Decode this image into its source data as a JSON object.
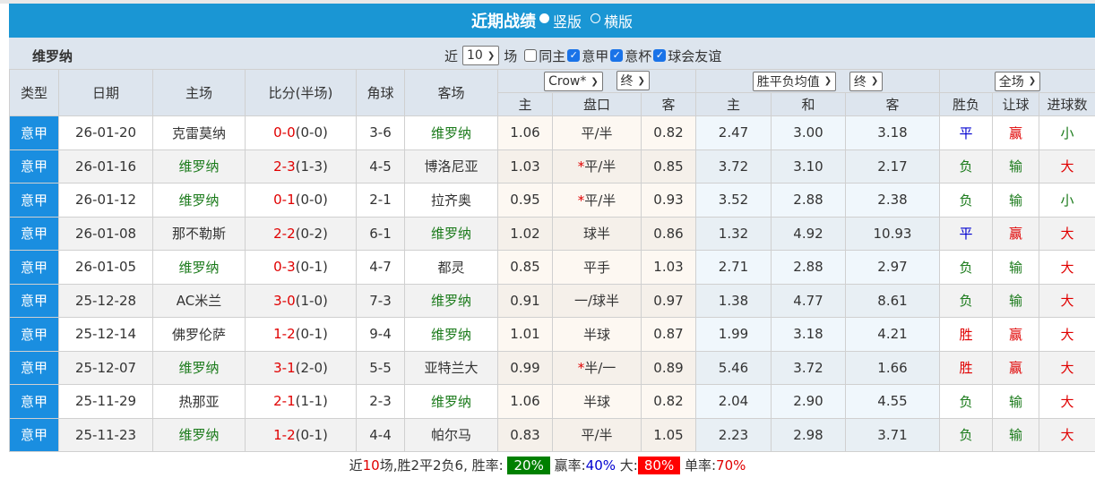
{
  "title": "近期战绩",
  "view_options": [
    {
      "label": "竖版",
      "selected": true
    },
    {
      "label": "横版",
      "selected": false
    }
  ],
  "team": "维罗纳",
  "filters": {
    "near_label": "近",
    "count": "10",
    "unit_label": "场",
    "checkboxes": [
      {
        "label": "同主",
        "checked": false
      },
      {
        "label": "意甲",
        "checked": true
      },
      {
        "label": "意杯",
        "checked": true
      },
      {
        "label": "球会友谊",
        "checked": true
      }
    ]
  },
  "headers": {
    "type": "类型",
    "date": "日期",
    "home": "主场",
    "score": "比分(半场)",
    "corner": "角球",
    "away": "客场",
    "asian_company": "Crow*",
    "asian_time": "终",
    "euro_type": "胜平负均值",
    "euro_time": "终",
    "result_scope": "全场",
    "asian_sub": [
      "主",
      "盘口",
      "客"
    ],
    "euro_sub": [
      "主",
      "和",
      "客"
    ],
    "result_sub": [
      "胜负",
      "让球",
      "进球数"
    ]
  },
  "rows": [
    {
      "type": "意甲",
      "date": "26-01-20",
      "home": "克雷莫纳",
      "score": "0-0",
      "half": "(0-0)",
      "corner": "3-6",
      "away": "维罗纳",
      "a_home": "1.06",
      "line": "平/半",
      "star": false,
      "a_away": "0.82",
      "e_home": "2.47",
      "e_draw": "3.00",
      "e_away": "3.18",
      "wdl": "平",
      "hcp": "赢",
      "ou": "小"
    },
    {
      "type": "意甲",
      "date": "26-01-16",
      "home": "维罗纳",
      "score": "2-3",
      "half": "(1-3)",
      "corner": "4-5",
      "away": "博洛尼亚",
      "a_home": "1.03",
      "line": "平/半",
      "star": true,
      "a_away": "0.85",
      "e_home": "3.72",
      "e_draw": "3.10",
      "e_away": "2.17",
      "wdl": "负",
      "hcp": "输",
      "ou": "大"
    },
    {
      "type": "意甲",
      "date": "26-01-12",
      "home": "维罗纳",
      "score": "0-1",
      "half": "(0-0)",
      "corner": "2-1",
      "away": "拉齐奥",
      "a_home": "0.95",
      "line": "平/半",
      "star": true,
      "a_away": "0.93",
      "e_home": "3.52",
      "e_draw": "2.88",
      "e_away": "2.38",
      "wdl": "负",
      "hcp": "输",
      "ou": "小"
    },
    {
      "type": "意甲",
      "date": "26-01-08",
      "home": "那不勒斯",
      "score": "2-2",
      "half": "(0-2)",
      "corner": "6-1",
      "away": "维罗纳",
      "a_home": "1.02",
      "line": "球半",
      "star": false,
      "a_away": "0.86",
      "e_home": "1.32",
      "e_draw": "4.92",
      "e_away": "10.93",
      "wdl": "平",
      "hcp": "赢",
      "ou": "大"
    },
    {
      "type": "意甲",
      "date": "26-01-05",
      "home": "维罗纳",
      "score": "0-3",
      "half": "(0-1)",
      "corner": "4-7",
      "away": "都灵",
      "a_home": "0.85",
      "line": "平手",
      "star": false,
      "a_away": "1.03",
      "e_home": "2.71",
      "e_draw": "2.88",
      "e_away": "2.97",
      "wdl": "负",
      "hcp": "输",
      "ou": "大"
    },
    {
      "type": "意甲",
      "date": "25-12-28",
      "home": "AC米兰",
      "score": "3-0",
      "half": "(1-0)",
      "corner": "7-3",
      "away": "维罗纳",
      "a_home": "0.91",
      "line": "一/球半",
      "star": false,
      "a_away": "0.97",
      "e_home": "1.38",
      "e_draw": "4.77",
      "e_away": "8.61",
      "wdl": "负",
      "hcp": "输",
      "ou": "大"
    },
    {
      "type": "意甲",
      "date": "25-12-14",
      "home": "佛罗伦萨",
      "score": "1-2",
      "half": "(0-1)",
      "corner": "9-4",
      "away": "维罗纳",
      "a_home": "1.01",
      "line": "半球",
      "star": false,
      "a_away": "0.87",
      "e_home": "1.99",
      "e_draw": "3.18",
      "e_away": "4.21",
      "wdl": "胜",
      "hcp": "赢",
      "ou": "大"
    },
    {
      "type": "意甲",
      "date": "25-12-07",
      "home": "维罗纳",
      "score": "3-1",
      "half": "(2-0)",
      "corner": "5-5",
      "away": "亚特兰大",
      "a_home": "0.99",
      "line": "半/一",
      "star": true,
      "a_away": "0.89",
      "e_home": "5.46",
      "e_draw": "3.72",
      "e_away": "1.66",
      "wdl": "胜",
      "hcp": "赢",
      "ou": "大"
    },
    {
      "type": "意甲",
      "date": "25-11-29",
      "home": "热那亚",
      "score": "2-1",
      "half": "(1-1)",
      "corner": "2-3",
      "away": "维罗纳",
      "a_home": "1.06",
      "line": "半球",
      "star": false,
      "a_away": "0.82",
      "e_home": "2.04",
      "e_draw": "2.90",
      "e_away": "4.55",
      "wdl": "负",
      "hcp": "输",
      "ou": "大"
    },
    {
      "type": "意甲",
      "date": "25-11-23",
      "home": "维罗纳",
      "score": "1-2",
      "half": "(0-1)",
      "corner": "4-4",
      "away": "帕尔马",
      "a_home": "0.83",
      "line": "平/半",
      "star": false,
      "a_away": "1.05",
      "e_home": "2.23",
      "e_draw": "2.98",
      "e_away": "3.71",
      "wdl": "负",
      "hcp": "输",
      "ou": "大"
    }
  ],
  "summary": {
    "prefix": "近",
    "count": "10",
    "text": "场,胜2平2负6, 胜率:",
    "win_rate": "20%",
    "win_plate_label": "赢率:",
    "win_plate": "40%",
    "over_label": "大:",
    "over": "80%",
    "odd_label": "单率:",
    "odd": "70%"
  },
  "colors": {
    "header": "#1a96d4",
    "win": "#e00000",
    "draw": "#0000d0",
    "loss": "#1a7a1a",
    "badge_green": "#008000",
    "badge_red": "#ff0000"
  }
}
